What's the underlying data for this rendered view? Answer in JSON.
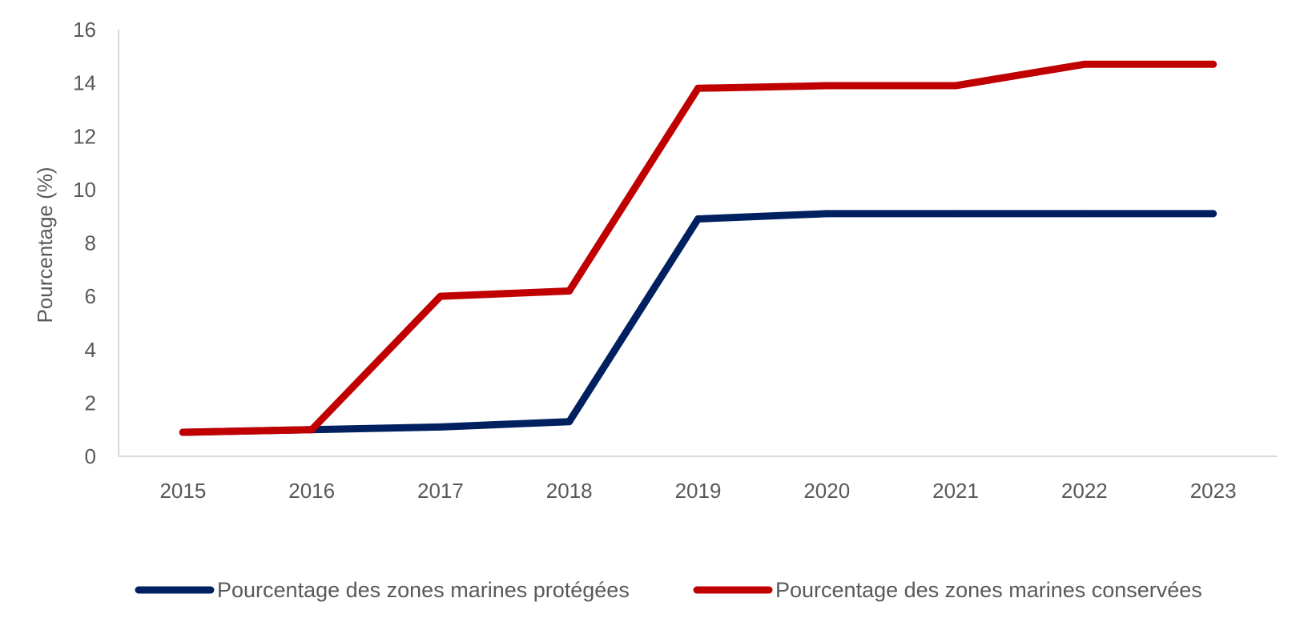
{
  "chart_data": {
    "type": "line",
    "title": "",
    "xlabel": "",
    "ylabel": "Pourcentage (%)",
    "categories": [
      "2015",
      "2016",
      "2017",
      "2018",
      "2019",
      "2020",
      "2021",
      "2022",
      "2023"
    ],
    "ylim": [
      0,
      16
    ],
    "yticks": [
      0,
      2,
      4,
      6,
      8,
      10,
      12,
      14,
      16
    ],
    "grid": false,
    "legend_position": "bottom",
    "series": [
      {
        "name": "Pourcentage des zones marines protégées",
        "color": "#002060",
        "values": [
          0.9,
          1.0,
          1.1,
          1.3,
          8.9,
          9.1,
          9.1,
          9.1,
          9.1
        ]
      },
      {
        "name": "Pourcentage des zones marines conservées",
        "color": "#C00000",
        "values": [
          0.9,
          1.0,
          6.0,
          6.2,
          13.8,
          13.9,
          13.9,
          14.7,
          14.7
        ]
      }
    ]
  }
}
